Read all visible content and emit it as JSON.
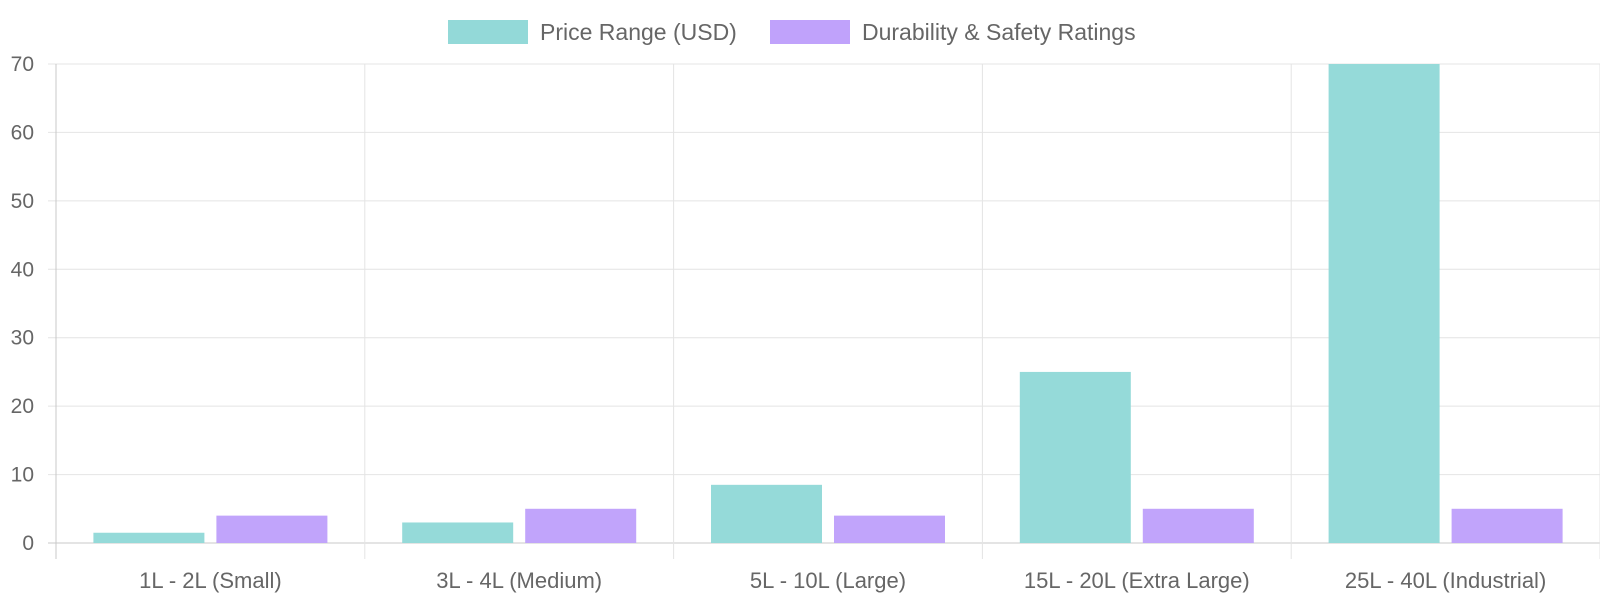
{
  "chart_data": {
    "type": "bar",
    "title": "",
    "xlabel": "",
    "ylabel": "",
    "categories": [
      "1L - 2L (Small)",
      "3L - 4L (Medium)",
      "5L - 10L (Large)",
      "15L - 20L (Extra Large)",
      "25L - 40L (Industrial)"
    ],
    "series": [
      {
        "name": "Price Range (USD)",
        "values": [
          1.5,
          3,
          8.5,
          25,
          70
        ],
        "color": "#93D9D8"
      },
      {
        "name": "Durability & Safety Ratings",
        "values": [
          4,
          5,
          4,
          5,
          5
        ],
        "color": "#C0A2FB"
      }
    ],
    "ylim": [
      0,
      70
    ],
    "yticks": [
      0,
      10,
      20,
      30,
      40,
      50,
      60,
      70
    ],
    "grid": true,
    "legend_position": "top"
  }
}
